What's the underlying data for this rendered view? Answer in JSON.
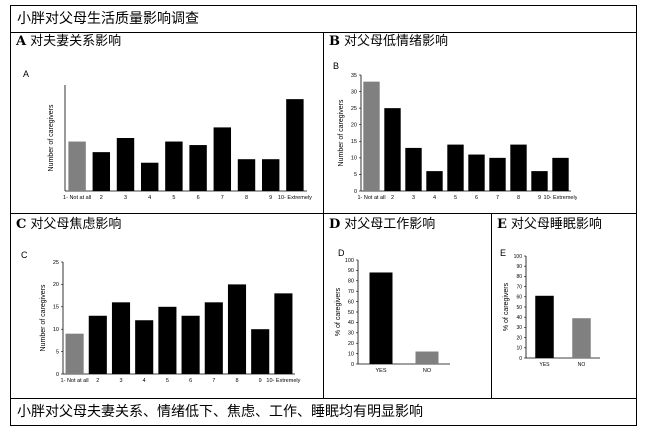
{
  "title": "小胖对父母生活质量影响调查",
  "footer": "小胖对父母夫妻关系、情绪低下、焦虑、工作、睡眠均有明显影响",
  "panels": {
    "A": {
      "letter": "A",
      "title": "对夫妻关系影响"
    },
    "B": {
      "letter": "B",
      "title": "对父母低情绪影响"
    },
    "C": {
      "letter": "C",
      "title": "对父母焦虑影响"
    },
    "D": {
      "letter": "D",
      "title": "对父母工作影响"
    },
    "E": {
      "letter": "E",
      "title": "对父母睡眠影响"
    }
  },
  "colors": {
    "black_bar": "#000000",
    "gray_bar": "#808080",
    "border": "#000000"
  },
  "chart_data": [
    {
      "id": "A",
      "type": "bar",
      "inner_label": "A",
      "categories": [
        "1- Not at all",
        "2",
        "3",
        "4",
        "5",
        "6",
        "7",
        "8",
        "9",
        "10- Extremely"
      ],
      "values": [
        14,
        11,
        15,
        8,
        14,
        13,
        18,
        9,
        9,
        26
      ],
      "bar_colors": [
        "#808080",
        "#000000",
        "#000000",
        "#000000",
        "#000000",
        "#000000",
        "#000000",
        "#000000",
        "#000000",
        "#000000"
      ],
      "ylabel": "Number of caregivers",
      "ylim": [
        0,
        30
      ],
      "yticks": [
        0,
        5,
        10,
        15,
        20,
        25,
        30
      ],
      "show_yticks": false,
      "grid": false
    },
    {
      "id": "B",
      "type": "bar",
      "inner_label": "B",
      "categories": [
        "1- Not at all",
        "2",
        "3",
        "4",
        "5",
        "6",
        "7",
        "8",
        "9",
        "10- Extremely"
      ],
      "values": [
        33,
        25,
        13,
        6,
        14,
        11,
        10,
        14,
        6,
        10
      ],
      "bar_colors": [
        "#808080",
        "#000000",
        "#000000",
        "#000000",
        "#000000",
        "#000000",
        "#000000",
        "#000000",
        "#000000",
        "#000000"
      ],
      "ylabel": "Number of caregivers",
      "ylim": [
        0,
        35
      ],
      "yticks": [
        0,
        5,
        10,
        15,
        20,
        25,
        30,
        35
      ],
      "show_yticks": true,
      "grid": false
    },
    {
      "id": "C",
      "type": "bar",
      "inner_label": "C",
      "categories": [
        "1- Not at all",
        "2",
        "3",
        "4",
        "5",
        "6",
        "7",
        "8",
        "9",
        "10- Extremely"
      ],
      "values": [
        9,
        13,
        16,
        12,
        15,
        13,
        16,
        20,
        10,
        18
      ],
      "bar_colors": [
        "#808080",
        "#000000",
        "#000000",
        "#000000",
        "#000000",
        "#000000",
        "#000000",
        "#000000",
        "#000000",
        "#000000"
      ],
      "ylabel": "Number of caregivers",
      "ylim": [
        0,
        25
      ],
      "yticks": [
        0,
        5,
        10,
        15,
        20,
        25
      ],
      "show_yticks": true,
      "grid": false
    },
    {
      "id": "D",
      "type": "bar",
      "inner_label": "D",
      "categories": [
        "YES",
        "NO"
      ],
      "values": [
        88,
        12
      ],
      "bar_colors": [
        "#000000",
        "#808080"
      ],
      "ylabel": "% of caregivers",
      "ylim": [
        0,
        100
      ],
      "yticks": [
        0,
        10,
        20,
        30,
        40,
        50,
        60,
        70,
        80,
        90,
        100
      ],
      "show_yticks": true,
      "grid": false
    },
    {
      "id": "E",
      "type": "bar",
      "inner_label": "E",
      "categories": [
        "YES",
        "NO"
      ],
      "values": [
        61,
        39
      ],
      "bar_colors": [
        "#000000",
        "#808080"
      ],
      "ylabel": "% of caregivers",
      "ylim": [
        0,
        100
      ],
      "yticks": [
        0,
        10,
        20,
        30,
        40,
        50,
        60,
        70,
        80,
        90,
        100
      ],
      "show_yticks": true,
      "grid": false
    }
  ]
}
